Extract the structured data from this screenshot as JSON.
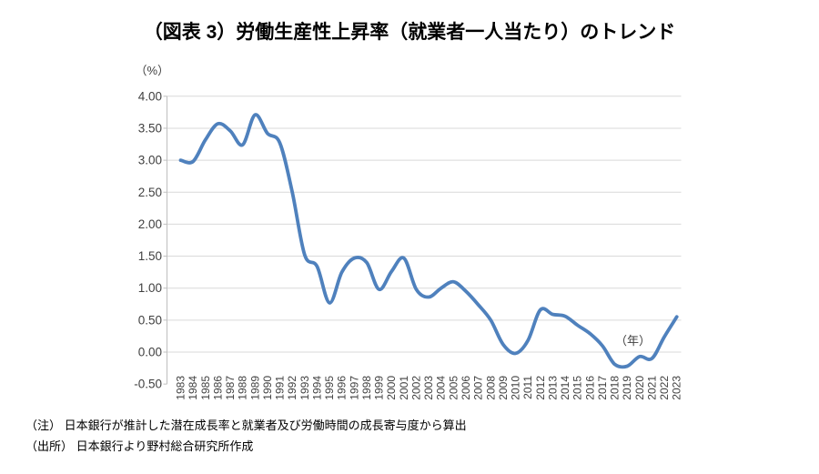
{
  "notes": [
    "（注） 日本銀行が推計した潜在成長率と就業者及び労働時間の成長寄与度から算出",
    "（出所） 日本銀行より野村総合研究所作成"
  ],
  "chart_data": {
    "type": "line",
    "title": "（図表 3）労働生産性上昇率（就業者一人当たり）のトレンド",
    "x_unit": "（年）",
    "y_unit": "（%）",
    "x": [
      1983,
      1984,
      1985,
      1986,
      1987,
      1988,
      1989,
      1990,
      1991,
      1992,
      1993,
      1994,
      1995,
      1996,
      1997,
      1998,
      1999,
      2000,
      2001,
      2002,
      2003,
      2004,
      2005,
      2006,
      2007,
      2008,
      2009,
      2010,
      2011,
      2012,
      2013,
      2014,
      2015,
      2016,
      2017,
      2018,
      2019,
      2020,
      2021,
      2022,
      2023
    ],
    "values": [
      3.0,
      2.98,
      3.32,
      3.57,
      3.46,
      3.24,
      3.71,
      3.42,
      3.27,
      2.5,
      1.52,
      1.34,
      0.77,
      1.25,
      1.47,
      1.4,
      0.98,
      1.26,
      1.47,
      0.98,
      0.86,
      1.0,
      1.1,
      0.95,
      0.74,
      0.5,
      0.12,
      -0.02,
      0.18,
      0.66,
      0.59,
      0.56,
      0.42,
      0.29,
      0.1,
      -0.19,
      -0.22,
      -0.07,
      -0.1,
      0.24,
      0.55
    ],
    "ylim": [
      -0.5,
      4.0
    ],
    "y_ticks": [
      "4.00",
      "3.50",
      "3.00",
      "2.50",
      "2.00",
      "1.50",
      "1.00",
      "0.50",
      "0.00",
      "-0.50"
    ],
    "grid": true,
    "legend": "none",
    "line_color": "#4f81bd",
    "grid_color": "#d9d9d9",
    "axis_line_color": "#bfbfbf",
    "axis_label_color": "#404040"
  }
}
